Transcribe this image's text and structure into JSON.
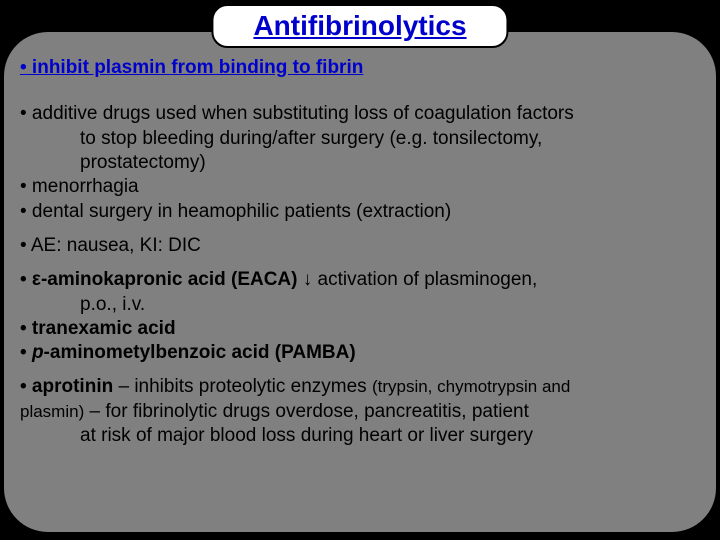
{
  "colors": {
    "background": "#000000",
    "panel": "#808080",
    "title_bg": "#ffffff",
    "title_border": "#000000",
    "title_text": "#0000cc",
    "mechanism_text": "#0000cc",
    "body_text": "#000000"
  },
  "typography": {
    "title_fontsize": 28,
    "body_fontsize": 19,
    "small_fontsize": 17,
    "font_family": "Arial"
  },
  "title": "Antifibrinolytics",
  "mechanism_bullet": "• inhibit plasmin from binding to fibrin",
  "uses": {
    "line1": "• additive drugs used when substituting loss of coagulation factors",
    "line2": "to stop bleeding during/after surgery (e.g. tonsilectomy,",
    "line3": "prostatectomy)",
    "line4": "• menorrhagia",
    "line5": "• dental surgery in heamophilic patients (extraction)"
  },
  "ae_line": "• AE: nausea, KI: DIC",
  "drugs": {
    "eaca_bold": "• ε-aminokapronic acid (EACA)",
    "eaca_rest": " ↓ activation of  plasminogen,",
    "eaca_route": "p.o., i.v.",
    "tranexamic": "• tranexamic acid",
    "pamba_prefix": "• ",
    "pamba_italic": "p",
    "pamba_rest": "-aminometylbenzoic acid (PAMBA)"
  },
  "aprotinin": {
    "bold": "• aprotinin",
    "rest1": " – inhibits proteolytic enzymes ",
    "small1": "(trypsin, chymotrypsin and",
    "small2": "plasmin)",
    "rest2": " – for fibrinolytic drugs overdose, pancreatitis, patient",
    "rest3": "at risk of major blood loss during heart or liver surgery"
  }
}
